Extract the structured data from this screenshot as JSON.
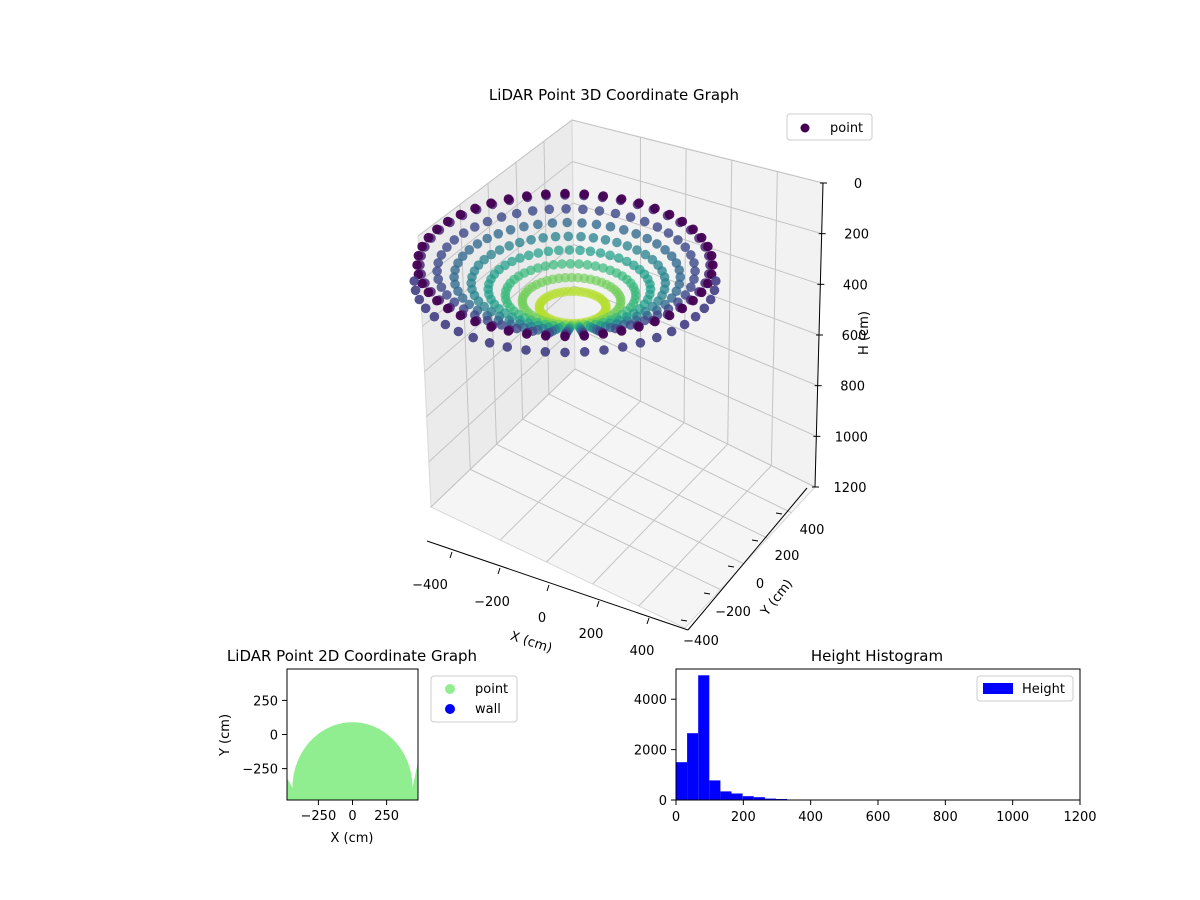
{
  "chart_data": [
    {
      "type": "scatter3d",
      "title": "LiDAR Point 3D Coordinate Graph",
      "xlabel": "X (cm)",
      "ylabel": "Y (cm)",
      "zlabel": "H (cm)",
      "xlim": [
        -500,
        500
      ],
      "ylim": [
        -500,
        500
      ],
      "zlim": [
        1200,
        0
      ],
      "xticks": [
        "−400",
        "−200",
        "0",
        "200",
        "400"
      ],
      "yticks": [
        "−400",
        "−200",
        "0",
        "200",
        "400"
      ],
      "zticks": [
        "0",
        "200",
        "400",
        "600",
        "800",
        "1000",
        "1200"
      ],
      "colormap": "viridis",
      "legend": {
        "placement": "top-right",
        "entries": [
          "point"
        ],
        "color": "#440154"
      },
      "grid": true
    },
    {
      "type": "scatter",
      "title": "LiDAR Point 2D Coordinate Graph",
      "xlabel": "X (cm)",
      "ylabel": "Y (cm)",
      "xlim": [
        -480,
        480
      ],
      "ylim": [
        -480,
        480
      ],
      "xticks": [
        "−250",
        "0",
        "250"
      ],
      "yticks": [
        "250",
        "0",
        "−250"
      ],
      "series": [
        {
          "name": "point",
          "color": "#90ee90"
        },
        {
          "name": "wall",
          "color": "#0000ff"
        }
      ],
      "legend": {
        "placement": "outside-right"
      }
    },
    {
      "type": "bar",
      "title": "Height Histogram",
      "xlim": [
        0,
        1200
      ],
      "ylim": [
        0,
        5200
      ],
      "xticks": [
        "0",
        "200",
        "400",
        "600",
        "800",
        "1000",
        "1200"
      ],
      "yticks": [
        "0",
        "2000",
        "4000"
      ],
      "bin_width": 33,
      "bins": [
        [
          0,
          1500
        ],
        [
          33,
          2650
        ],
        [
          66,
          4950
        ],
        [
          99,
          780
        ],
        [
          132,
          340
        ],
        [
          165,
          260
        ],
        [
          198,
          150
        ],
        [
          231,
          110
        ],
        [
          264,
          55
        ],
        [
          297,
          40
        ],
        [
          330,
          10
        ]
      ],
      "series": [
        {
          "name": "Height",
          "color": "#0000ff"
        }
      ],
      "legend": {
        "placement": "top-right"
      }
    }
  ]
}
